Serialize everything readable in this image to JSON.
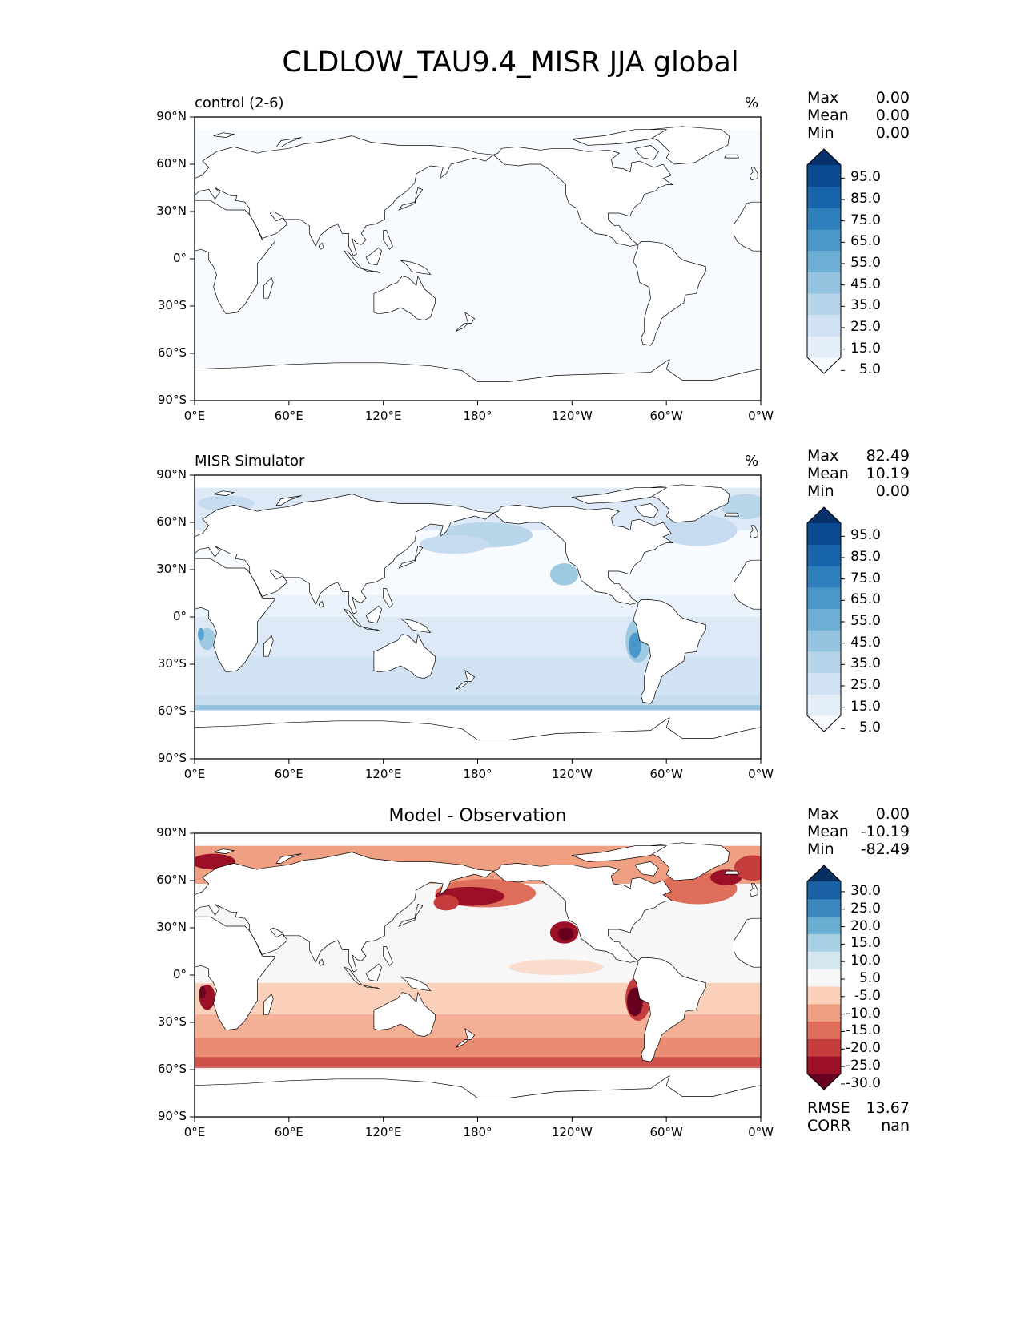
{
  "figure": {
    "title": "CLDLOW_TAU9.4_MISR JJA global"
  },
  "axes": {
    "lat_labels": [
      "90°N",
      "60°N",
      "30°N",
      "0°",
      "30°S",
      "60°S",
      "90°S"
    ],
    "lon_labels": [
      "0°E",
      "60°E",
      "120°E",
      "180°",
      "120°W",
      "60°W",
      "0°W"
    ]
  },
  "panels": [
    {
      "id": "control",
      "left_title": "control (2-6)",
      "center_title": "",
      "units": "%",
      "stats": [
        {
          "label": "Max",
          "value": "0.00"
        },
        {
          "label": "Mean",
          "value": "0.00"
        },
        {
          "label": "Min",
          "value": "0.00"
        }
      ],
      "colorbar": {
        "labels": [
          "95.0",
          "85.0",
          "75.0",
          "65.0",
          "55.0",
          "45.0",
          "35.0",
          "25.0",
          "15.0",
          "5.0"
        ],
        "colors": [
          "#f7fbff",
          "#e3eef9",
          "#cfe1f2",
          "#b5d4e9",
          "#93c3df",
          "#6daed5",
          "#4b97c9",
          "#2f7ebc",
          "#1864aa",
          "#0a4a90",
          "#08306b"
        ]
      }
    },
    {
      "id": "misr",
      "left_title": "MISR Simulator",
      "center_title": "",
      "units": "%",
      "stats": [
        {
          "label": "Max",
          "value": "82.49"
        },
        {
          "label": "Mean",
          "value": "10.19"
        },
        {
          "label": "Min",
          "value": "0.00"
        }
      ],
      "colorbar": {
        "labels": [
          "95.0",
          "85.0",
          "75.0",
          "65.0",
          "55.0",
          "45.0",
          "35.0",
          "25.0",
          "15.0",
          "5.0"
        ],
        "colors": [
          "#f7fbff",
          "#e3eef9",
          "#cfe1f2",
          "#b5d4e9",
          "#93c3df",
          "#6daed5",
          "#4b97c9",
          "#2f7ebc",
          "#1864aa",
          "#0a4a90",
          "#08306b"
        ]
      }
    },
    {
      "id": "diff",
      "left_title": "",
      "center_title": "Model - Observation",
      "units": "",
      "stats": [
        {
          "label": "Max",
          "value": "0.00"
        },
        {
          "label": "Mean",
          "value": "-10.19"
        },
        {
          "label": "Min",
          "value": "-82.49"
        }
      ],
      "extra_stats": [
        {
          "label": "RMSE",
          "value": "13.67"
        },
        {
          "label": "CORR",
          "value": "nan"
        }
      ],
      "colorbar": {
        "labels": [
          "30.0",
          "25.0",
          "20.0",
          "15.0",
          "10.0",
          "5.0",
          "-5.0",
          "-10.0",
          "-15.0",
          "-20.0",
          "-25.0",
          "-30.0"
        ],
        "colors": [
          "#67001f",
          "#9b1027",
          "#c43c3c",
          "#de6d5a",
          "#f0a082",
          "#fbd0ba",
          "#f7f7f7",
          "#d4e6f0",
          "#a7cfe4",
          "#6aaed2",
          "#3a88be",
          "#1a60a2",
          "#053061"
        ]
      }
    }
  ]
}
